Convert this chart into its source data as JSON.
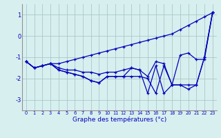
{
  "x": [
    0,
    1,
    2,
    3,
    4,
    5,
    6,
    7,
    8,
    9,
    10,
    11,
    12,
    13,
    14,
    15,
    16,
    17,
    18,
    19,
    20,
    21,
    22,
    23
  ],
  "line1": [
    -1.2,
    -1.5,
    -1.4,
    -1.3,
    -1.3,
    -1.2,
    -1.1,
    -1.0,
    -0.9,
    -0.8,
    -0.7,
    -0.6,
    -0.5,
    -0.4,
    -0.3,
    -0.2,
    -0.1,
    0.0,
    0.1,
    0.3,
    0.5,
    0.7,
    0.9,
    1.1
  ],
  "line2": [
    -1.2,
    -1.5,
    -1.4,
    -1.3,
    -1.5,
    -1.6,
    -1.6,
    -1.7,
    -1.7,
    -1.8,
    -1.7,
    -1.7,
    -1.6,
    -1.5,
    -1.6,
    -1.9,
    -1.2,
    -1.3,
    -2.3,
    -0.9,
    -0.8,
    -1.1,
    -1.1,
    1.1
  ],
  "line3": [
    -1.2,
    -1.5,
    -1.4,
    -1.3,
    -1.6,
    -1.7,
    -1.8,
    -1.9,
    -2.1,
    -2.2,
    -1.9,
    -1.9,
    -1.9,
    -1.9,
    -1.9,
    -2.0,
    -2.7,
    -1.4,
    -2.3,
    -2.3,
    -2.3,
    -2.3,
    -1.0,
    1.1
  ],
  "line4": [
    -1.2,
    -1.5,
    -1.4,
    -1.3,
    -1.6,
    -1.7,
    -1.8,
    -1.9,
    -2.1,
    -2.2,
    -1.9,
    -1.9,
    -1.9,
    -1.5,
    -1.6,
    -2.7,
    -1.4,
    -2.7,
    -2.3,
    -2.3,
    -2.5,
    -2.3,
    -1.0,
    1.1
  ],
  "xlabel": "Graphe des températures (°c)",
  "background_color": "#d8efef",
  "line_color": "#0000bb",
  "grid_color": "#a8c8c8",
  "ylim": [
    -3.5,
    1.5
  ],
  "xlim": [
    -0.5,
    23.5
  ],
  "yticks": [
    -3,
    -2,
    -1,
    0,
    1
  ],
  "xticks": [
    0,
    1,
    2,
    3,
    4,
    5,
    6,
    7,
    8,
    9,
    10,
    11,
    12,
    13,
    14,
    15,
    16,
    17,
    18,
    19,
    20,
    21,
    22,
    23
  ]
}
